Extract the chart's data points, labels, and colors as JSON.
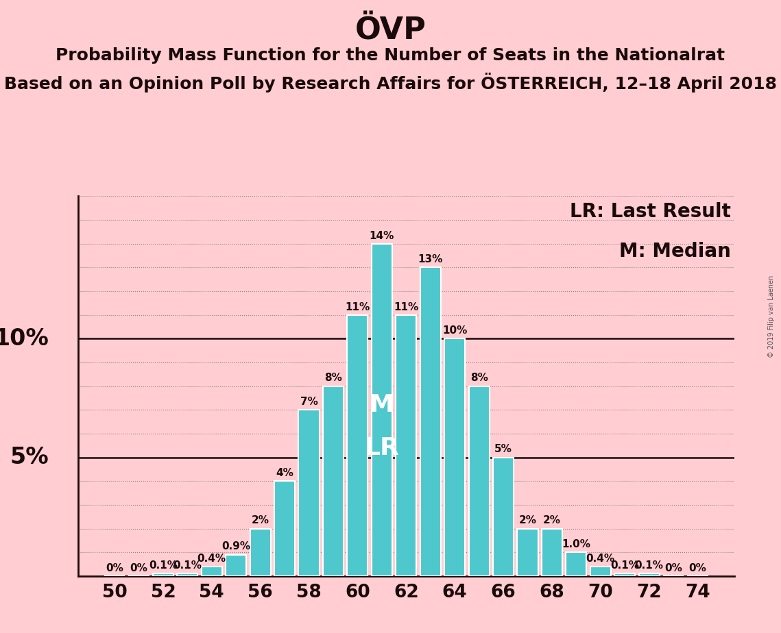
{
  "title": "ÖVP",
  "subtitle1": "Probability Mass Function for the Number of Seats in the Nationalrat",
  "subtitle2": "Based on an Opinion Poll by Research Affairs for ÖSTERREICH, 12–18 April 2018",
  "watermark": "© 2019 Filip van Laenen",
  "legend_lr": "LR: Last Result",
  "legend_m": "M: Median",
  "bar_color": "#4EC8CC",
  "background_color": "#FFCDD2",
  "seats": [
    50,
    51,
    52,
    53,
    54,
    55,
    56,
    57,
    58,
    59,
    60,
    61,
    62,
    63,
    64,
    65,
    66,
    67,
    68,
    69,
    70,
    71,
    72,
    73,
    74
  ],
  "probabilities": [
    0.0,
    0.0,
    0.1,
    0.1,
    0.4,
    0.9,
    2.0,
    4.0,
    7.0,
    8.0,
    11.0,
    14.0,
    11.0,
    13.0,
    10.0,
    8.0,
    5.0,
    2.0,
    2.0,
    1.0,
    0.4,
    0.1,
    0.1,
    0.0,
    0.0
  ],
  "labels": [
    "0%",
    "0%",
    "0.1%",
    "0.1%",
    "0.4%",
    "0.9%",
    "2%",
    "4%",
    "7%",
    "8%",
    "11%",
    "14%",
    "11%",
    "13%",
    "10%",
    "8%",
    "5%",
    "2%",
    "2%",
    "1.0%",
    "0.4%",
    "0.1%",
    "0.1%",
    "0%",
    "0%"
  ],
  "median_seat": 61,
  "lr_seat": 61,
  "median_label": "M",
  "lr_label": "LR",
  "xlabel_seats": [
    50,
    52,
    54,
    56,
    58,
    60,
    62,
    64,
    66,
    68,
    70,
    72,
    74
  ],
  "ylim": [
    0,
    16
  ],
  "ylabel_ticks": [
    5,
    10
  ],
  "ylabel_labels": [
    "5%",
    "10%"
  ],
  "title_fontsize": 32,
  "subtitle_fontsize": 18,
  "legend_fontsize": 20,
  "bar_label_fontsize": 11,
  "bar_edge_color": "#ffffff",
  "text_color": "#1a0a0a",
  "axis_color": "#1a0a0a",
  "dotted_color": "#888888",
  "solid_color": "#1a0a0a"
}
